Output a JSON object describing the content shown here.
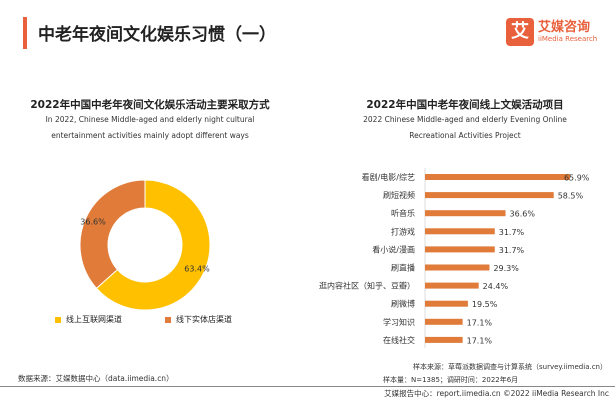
{
  "header": {
    "title": "中老年夜间文化娱乐习惯（一）",
    "logo_mark": "艾",
    "logo_cn": "艾媒咨询",
    "logo_en": "iiMedia Research"
  },
  "colors": {
    "accent": "#E8603C",
    "yellow": "#FFC000",
    "orange": "#E07B39"
  },
  "chart_data": [
    {
      "type": "pie",
      "title": "2022年中国中老年夜间文化娱乐活动主要采取方式",
      "subtitle": [
        "In 2022, Chinese Middle-aged and elderly night cultural",
        "entertainment activities mainly adopt different ways"
      ],
      "categories": [
        "线上互联网渠道",
        "线下实体店渠道"
      ],
      "values": [
        63.4,
        36.6
      ],
      "labels": [
        "63.4%",
        "36.6%"
      ],
      "legend": "bottom"
    },
    {
      "type": "bar",
      "orientation": "horizontal",
      "title": "2022年中国中老年夜间线上文娱活动项目",
      "subtitle": [
        "2022 Chinese Middle-aged and elderly Evening Online",
        "Recreational Activities Project"
      ],
      "categories": [
        "看剧/电影/综艺",
        "刷短视频",
        "听音乐",
        "打游戏",
        "看小说/漫画",
        "刷直播",
        "逛内容社区（知乎、豆瓣）",
        "刷微博",
        "学习知识",
        "在线社交"
      ],
      "values": [
        65.9,
        58.5,
        36.6,
        31.7,
        31.7,
        29.3,
        24.4,
        19.5,
        17.1,
        17.1
      ],
      "labels": [
        "65.9%",
        "58.5%",
        "36.6%",
        "31.7%",
        "31.7%",
        "29.3%",
        "24.4%",
        "19.5%",
        "17.1%",
        "17.1%"
      ],
      "unit": "%"
    }
  ],
  "footer": {
    "left_source": "数据来源：艾媒数据中心（data.iimedia.cn）",
    "sample_source": "样本来源：草莓派数据调查与计算系统（survey.iimedia.cn）",
    "sample_size": "样本量：N=1385；调研时间：2022年6月",
    "copyright": "艾媒报告中心：report.iimedia.cn  ©2022  iiMedia Research  Inc"
  }
}
